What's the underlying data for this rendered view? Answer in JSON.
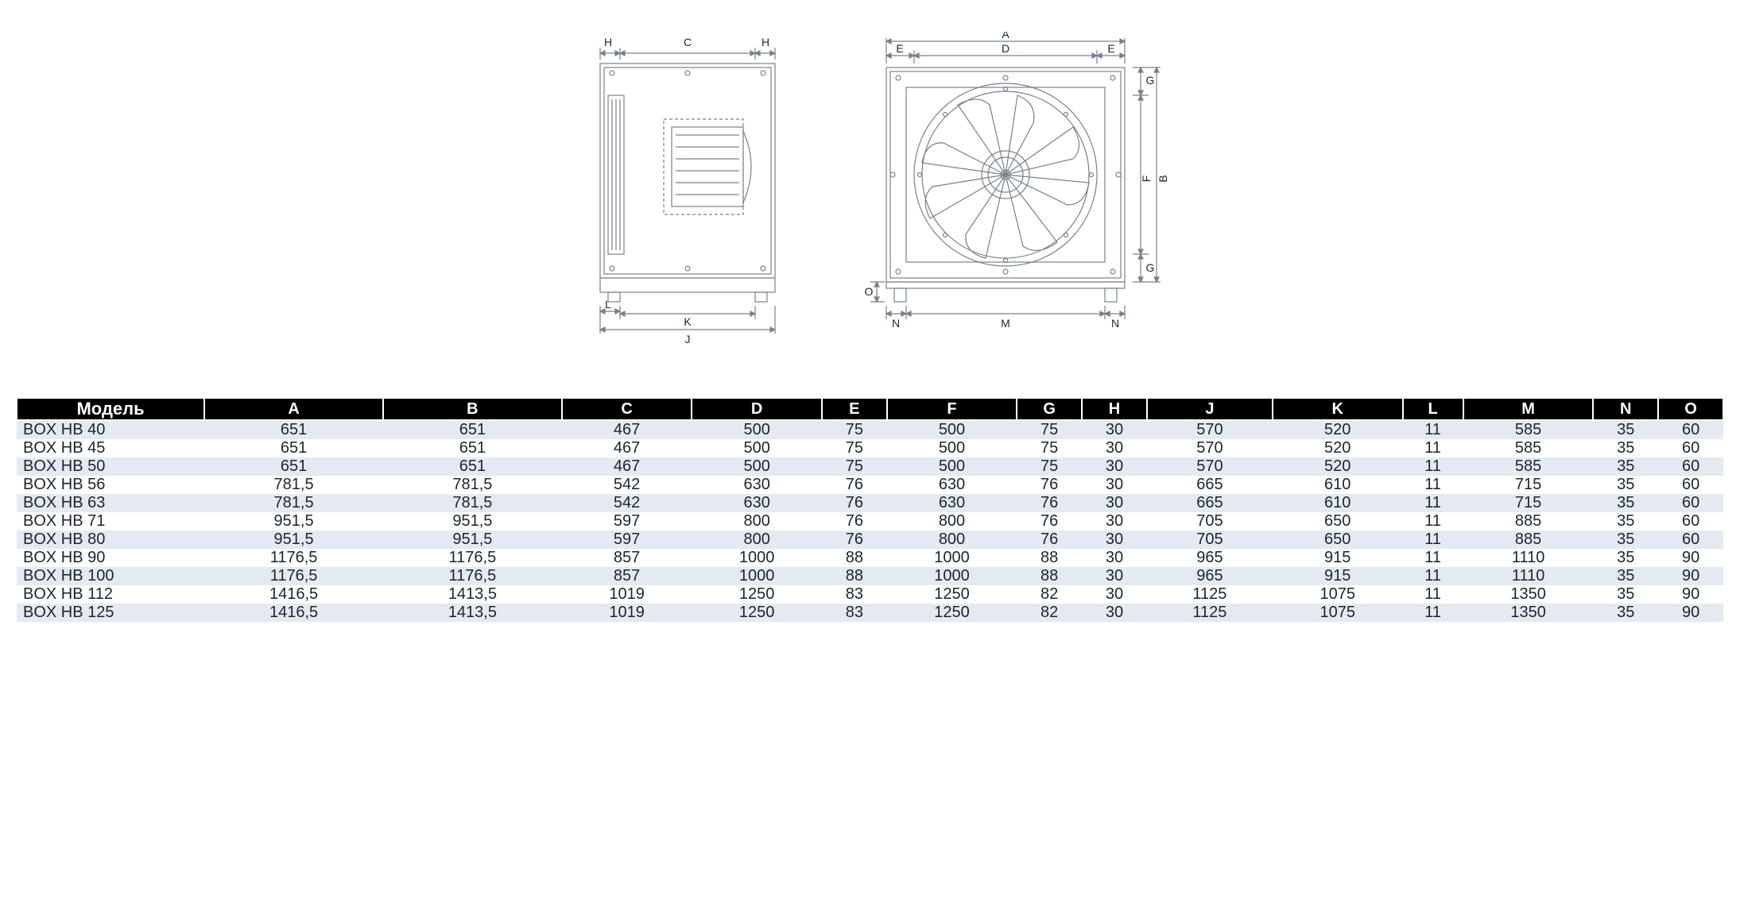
{
  "diagram": {
    "side_view": {
      "labels": {
        "H_left": "H",
        "C": "C",
        "H_right": "H",
        "L": "L",
        "K": "K",
        "J": "J"
      },
      "stroke_color": "#78818b",
      "label_color": "#1a2530"
    },
    "front_view": {
      "labels": {
        "A": "A",
        "E_left": "E",
        "D": "D",
        "E_right": "E",
        "G_top": "G",
        "F": "F",
        "G_bottom": "G",
        "B": "B",
        "O": "O",
        "N_left": "N",
        "M": "M",
        "N_right": "N"
      },
      "stroke_color": "#78818b",
      "label_color": "#1a2530"
    }
  },
  "table": {
    "header_bg": "#000000",
    "header_text_color": "#ffffff",
    "row_even_bg": "#e4eaf0",
    "row_odd_bg": "#ffffff",
    "text_color": "#1a2530",
    "columns": [
      "Модель",
      "A",
      "B",
      "C",
      "D",
      "E",
      "F",
      "G",
      "H",
      "J",
      "K",
      "L",
      "M",
      "N",
      "O"
    ],
    "rows": [
      {
        "model": "BOX HB 40",
        "values": [
          "651",
          "651",
          "467",
          "500",
          "75",
          "500",
          "75",
          "30",
          "570",
          "520",
          "11",
          "585",
          "35",
          "60"
        ]
      },
      {
        "model": "BOX HB 45",
        "values": [
          "651",
          "651",
          "467",
          "500",
          "75",
          "500",
          "75",
          "30",
          "570",
          "520",
          "11",
          "585",
          "35",
          "60"
        ]
      },
      {
        "model": "BOX HB 50",
        "values": [
          "651",
          "651",
          "467",
          "500",
          "75",
          "500",
          "75",
          "30",
          "570",
          "520",
          "11",
          "585",
          "35",
          "60"
        ]
      },
      {
        "model": "BOX HB 56",
        "values": [
          "781,5",
          "781,5",
          "542",
          "630",
          "76",
          "630",
          "76",
          "30",
          "665",
          "610",
          "11",
          "715",
          "35",
          "60"
        ]
      },
      {
        "model": "BOX HB 63",
        "values": [
          "781,5",
          "781,5",
          "542",
          "630",
          "76",
          "630",
          "76",
          "30",
          "665",
          "610",
          "11",
          "715",
          "35",
          "60"
        ]
      },
      {
        "model": "BOX HB 71",
        "values": [
          "951,5",
          "951,5",
          "597",
          "800",
          "76",
          "800",
          "76",
          "30",
          "705",
          "650",
          "11",
          "885",
          "35",
          "60"
        ]
      },
      {
        "model": "BOX HB 80",
        "values": [
          "951,5",
          "951,5",
          "597",
          "800",
          "76",
          "800",
          "76",
          "30",
          "705",
          "650",
          "11",
          "885",
          "35",
          "60"
        ]
      },
      {
        "model": "BOX HB 90",
        "values": [
          "1176,5",
          "1176,5",
          "857",
          "1000",
          "88",
          "1000",
          "88",
          "30",
          "965",
          "915",
          "11",
          "1110",
          "35",
          "90"
        ]
      },
      {
        "model": "BOX HB 100",
        "values": [
          "1176,5",
          "1176,5",
          "857",
          "1000",
          "88",
          "1000",
          "88",
          "30",
          "965",
          "915",
          "11",
          "1110",
          "35",
          "90"
        ]
      },
      {
        "model": "BOX HB 112",
        "values": [
          "1416,5",
          "1413,5",
          "1019",
          "1250",
          "83",
          "1250",
          "82",
          "30",
          "1125",
          "1075",
          "11",
          "1350",
          "35",
          "90"
        ]
      },
      {
        "model": "BOX HB 125",
        "values": [
          "1416,5",
          "1413,5",
          "1019",
          "1250",
          "83",
          "1250",
          "82",
          "30",
          "1125",
          "1075",
          "11",
          "1350",
          "35",
          "90"
        ]
      }
    ]
  }
}
